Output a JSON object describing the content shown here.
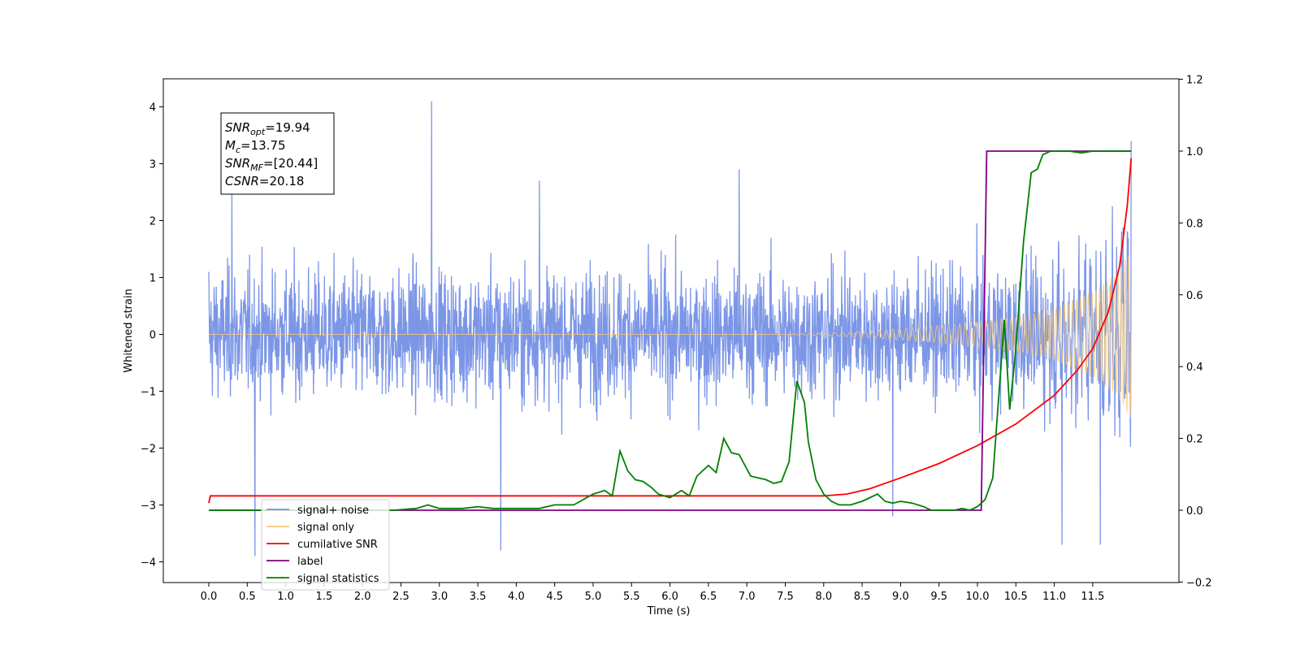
{
  "chart_data": {
    "type": "line",
    "xlabel": "Time (s)",
    "ylabel": "Whitened strain",
    "xlim": [
      -0.6,
      12.6
    ],
    "ylim": [
      -4.4,
      4.5
    ],
    "y2lim": [
      -0.2,
      1.2
    ],
    "x_ticks": [
      "0.0",
      "0.5",
      "1.0",
      "1.5",
      "2.0",
      "2.5",
      "3.0",
      "3.5",
      "4.0",
      "4.5",
      "5.0",
      "5.5",
      "6.0",
      "6.5",
      "7.0",
      "7.5",
      "8.0",
      "8.5",
      "9.0",
      "9.5",
      "10.0",
      "10.5",
      "11.0",
      "11.5"
    ],
    "y_ticks": [
      "4",
      "3",
      "2",
      "1",
      "0",
      "−1",
      "−2",
      "−3",
      "−4"
    ],
    "y2_ticks": [
      "1.2",
      "1.0",
      "0.8",
      "0.6",
      "0.4",
      "0.2",
      "0.0",
      "−0.2"
    ],
    "annotation": {
      "lines": [
        {
          "var": "SNR",
          "sub": "opt",
          "value": "=19.94"
        },
        {
          "var": "M",
          "sub": "c",
          "value": "=13.75"
        },
        {
          "var": "SNR",
          "sub": "MF",
          "value": "=[20.44]"
        },
        {
          "var": "CSNR",
          "sub": "",
          "value": "=20.18"
        }
      ]
    },
    "legend": {
      "placement": "lower-left",
      "entries": [
        {
          "label": "signal+ noise",
          "color": "#7590e6"
        },
        {
          "label": "signal only",
          "color": "#f5c87a"
        },
        {
          "label": "cumilative SNR",
          "color": "#ff0000"
        },
        {
          "label": "label",
          "color": "#800080"
        },
        {
          "label": "signal statistics",
          "color": "#008000"
        }
      ],
      "hidden_text": {
        "overlapped_label": "signal only",
        "overlapped_label_2": "noise"
      }
    },
    "series": [
      {
        "name": "signal+ noise",
        "axis": "left",
        "color": "#7590e6",
        "description_points": {
          "peaks": [
            [
              0.0,
              1.1
            ],
            [
              0.3,
              2.6
            ],
            [
              2.9,
              4.1
            ],
            [
              4.3,
              2.7
            ],
            [
              6.9,
              2.9
            ],
            [
              11.6,
              3.5
            ],
            [
              12.0,
              3.4
            ]
          ],
          "troughs": [
            [
              0.6,
              -3.9
            ],
            [
              3.8,
              -3.8
            ],
            [
              8.9,
              -3.2
            ],
            [
              11.1,
              -3.7
            ],
            [
              11.6,
              -3.7
            ]
          ]
        }
      },
      {
        "name": "signal only",
        "axis": "left",
        "color": "#f5c87a",
        "envelope": [
          [
            0.0,
            0.0
          ],
          [
            7.5,
            0.0
          ],
          [
            8.5,
            0.05
          ],
          [
            9.5,
            0.15
          ],
          [
            10.5,
            0.3
          ],
          [
            11.0,
            0.45
          ],
          [
            11.5,
            0.75
          ],
          [
            11.8,
            1.05
          ],
          [
            12.0,
            1.5
          ]
        ]
      },
      {
        "name": "cumilative SNR",
        "axis": "right",
        "color": "#ff0000",
        "points": [
          [
            0.0,
            0.02
          ],
          [
            0.02,
            0.04
          ],
          [
            1.0,
            0.04
          ],
          [
            3.0,
            0.04
          ],
          [
            5.0,
            0.04
          ],
          [
            7.0,
            0.04
          ],
          [
            8.0,
            0.04
          ],
          [
            8.3,
            0.045
          ],
          [
            8.6,
            0.06
          ],
          [
            9.0,
            0.09
          ],
          [
            9.5,
            0.13
          ],
          [
            10.0,
            0.18
          ],
          [
            10.5,
            0.24
          ],
          [
            11.0,
            0.32
          ],
          [
            11.3,
            0.39
          ],
          [
            11.5,
            0.45
          ],
          [
            11.7,
            0.55
          ],
          [
            11.85,
            0.68
          ],
          [
            11.95,
            0.85
          ],
          [
            12.0,
            0.98
          ]
        ]
      },
      {
        "name": "label",
        "axis": "right",
        "color": "#800080",
        "points": [
          [
            0.0,
            0.0
          ],
          [
            10.05,
            0.0
          ],
          [
            10.12,
            1.0
          ],
          [
            12.0,
            1.0
          ]
        ]
      },
      {
        "name": "signal statistics",
        "axis": "right",
        "color": "#008000",
        "points": [
          [
            0.0,
            0.0
          ],
          [
            1.0,
            0.0
          ],
          [
            2.0,
            0.0
          ],
          [
            2.4,
            0.0
          ],
          [
            2.7,
            0.005
          ],
          [
            2.85,
            0.015
          ],
          [
            3.0,
            0.005
          ],
          [
            3.3,
            0.005
          ],
          [
            3.5,
            0.01
          ],
          [
            3.7,
            0.005
          ],
          [
            4.0,
            0.005
          ],
          [
            4.3,
            0.005
          ],
          [
            4.5,
            0.015
          ],
          [
            4.75,
            0.015
          ],
          [
            5.0,
            0.045
          ],
          [
            5.15,
            0.055
          ],
          [
            5.25,
            0.04
          ],
          [
            5.35,
            0.165
          ],
          [
            5.45,
            0.11
          ],
          [
            5.55,
            0.085
          ],
          [
            5.65,
            0.08
          ],
          [
            5.75,
            0.065
          ],
          [
            5.85,
            0.045
          ],
          [
            6.0,
            0.035
          ],
          [
            6.15,
            0.055
          ],
          [
            6.25,
            0.04
          ],
          [
            6.35,
            0.095
          ],
          [
            6.5,
            0.125
          ],
          [
            6.6,
            0.105
          ],
          [
            6.7,
            0.2
          ],
          [
            6.8,
            0.16
          ],
          [
            6.9,
            0.155
          ],
          [
            7.0,
            0.115
          ],
          [
            7.05,
            0.095
          ],
          [
            7.15,
            0.09
          ],
          [
            7.25,
            0.085
          ],
          [
            7.35,
            0.075
          ],
          [
            7.45,
            0.08
          ],
          [
            7.55,
            0.135
          ],
          [
            7.65,
            0.36
          ],
          [
            7.75,
            0.3
          ],
          [
            7.8,
            0.19
          ],
          [
            7.9,
            0.085
          ],
          [
            8.0,
            0.045
          ],
          [
            8.1,
            0.025
          ],
          [
            8.2,
            0.015
          ],
          [
            8.35,
            0.015
          ],
          [
            8.5,
            0.025
          ],
          [
            8.6,
            0.035
          ],
          [
            8.7,
            0.045
          ],
          [
            8.8,
            0.025
          ],
          [
            8.9,
            0.02
          ],
          [
            9.0,
            0.025
          ],
          [
            9.15,
            0.02
          ],
          [
            9.3,
            0.01
          ],
          [
            9.4,
            0.0
          ],
          [
            9.7,
            0.0
          ],
          [
            9.8,
            0.005
          ],
          [
            9.9,
            0.0
          ],
          [
            10.0,
            0.01
          ],
          [
            10.1,
            0.03
          ],
          [
            10.2,
            0.09
          ],
          [
            10.35,
            0.53
          ],
          [
            10.42,
            0.28
          ],
          [
            10.5,
            0.45
          ],
          [
            10.6,
            0.75
          ],
          [
            10.7,
            0.94
          ],
          [
            10.78,
            0.95
          ],
          [
            10.85,
            0.99
          ],
          [
            10.95,
            1.0
          ],
          [
            11.2,
            1.0
          ],
          [
            11.35,
            0.995
          ],
          [
            11.5,
            1.0
          ],
          [
            12.0,
            1.0
          ]
        ]
      }
    ]
  }
}
